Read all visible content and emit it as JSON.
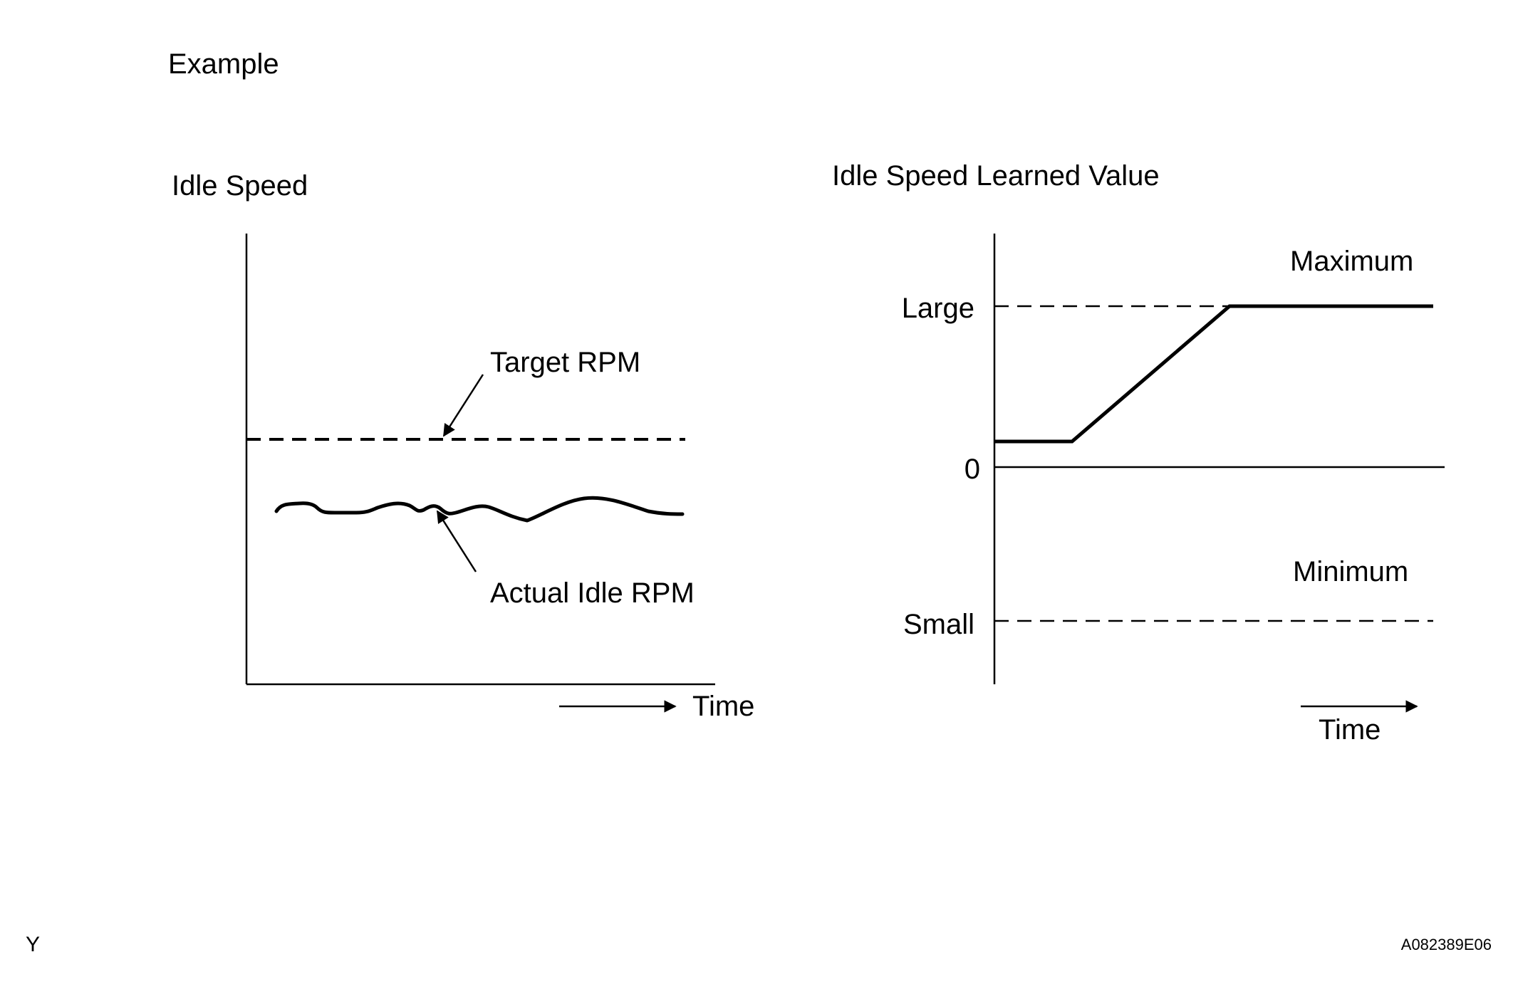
{
  "heading": "Example",
  "left_chart": {
    "title": "Idle Speed",
    "target_label": "Target RPM",
    "actual_label": "Actual Idle RPM",
    "x_label": "Time"
  },
  "right_chart": {
    "title": "Idle Speed Learned Value",
    "y_ticks": {
      "large": "Large",
      "zero": "0",
      "small": "Small"
    },
    "max_label": "Maximum",
    "min_label": "Minimum",
    "x_label": "Time"
  },
  "corner_mark": "Y",
  "figure_code": "A082389E06"
}
